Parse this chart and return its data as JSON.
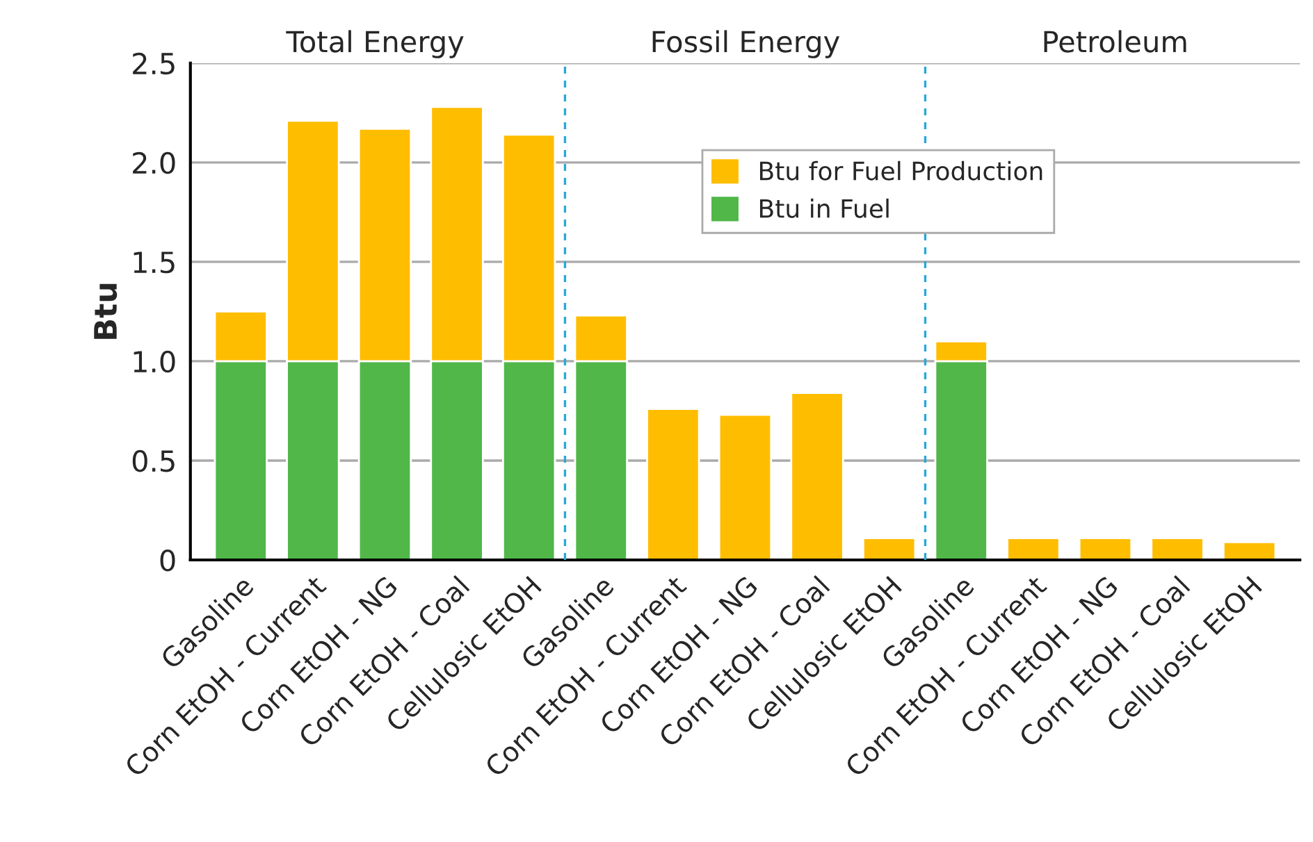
{
  "chart_data": {
    "type": "bar",
    "stacked": true,
    "ylabel": "Btu",
    "categories": [
      "Gasoline",
      "Corn EtOH - Current",
      "Corn EtOH - NG",
      "Corn EtOH - Coal",
      "Cellulosic EtOH",
      "Gasoline",
      "Corn EtOH - Current",
      "Corn EtOH - NG",
      "Corn EtOH - Coal",
      "Cellulosic EtOH",
      "Gasoline",
      "Corn EtOH - Current",
      "Corn EtOH - NG",
      "Corn EtOH - Coal",
      "Cellulosic EtOH"
    ],
    "series": [
      {
        "name": "Btu in Fuel",
        "color": "#50b748",
        "values": [
          1,
          1,
          1,
          1,
          1,
          1,
          0,
          0,
          0,
          0,
          1,
          0,
          0,
          0,
          0
        ]
      },
      {
        "name": "Btu for Fuel Production",
        "color": "#ffbd00",
        "values": [
          0.25,
          1.21,
          1.17,
          1.28,
          1.14,
          0.23,
          0.76,
          0.73,
          0.84,
          0.11,
          0.1,
          0.11,
          0.11,
          0.11,
          0.09
        ]
      }
    ],
    "ylim": [
      0,
      2.5
    ],
    "yticks": [
      0,
      0.5,
      {
        "value": 1,
        "label": "1.0"
      },
      1.5,
      {
        "value": 2,
        "label": "2.0"
      },
      2.5
    ],
    "grid": "y",
    "legend": "top",
    "annotations": [
      "Total Energy",
      "Fossil Energy",
      "Petroleum"
    ]
  }
}
